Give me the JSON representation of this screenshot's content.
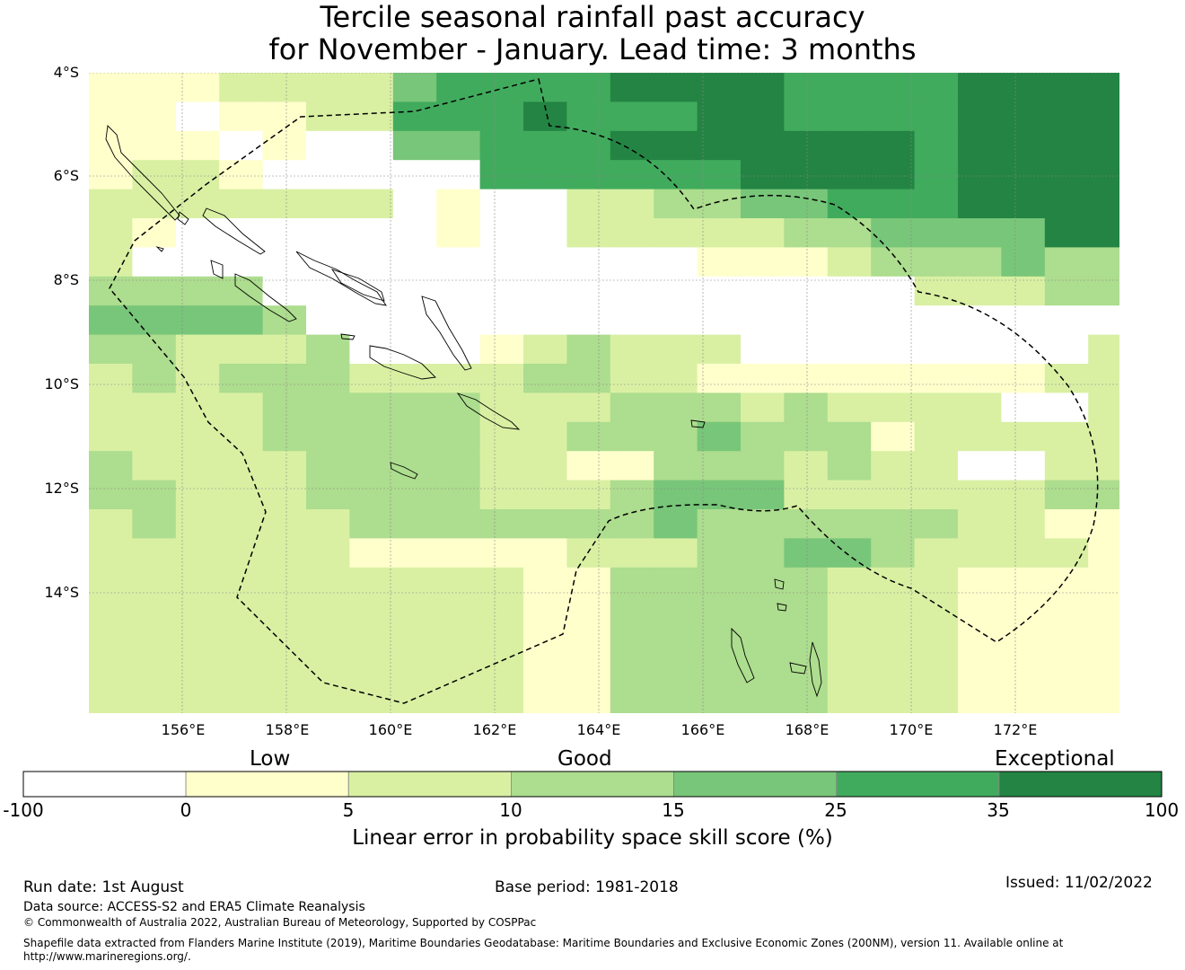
{
  "title": {
    "line1": "Tercile seasonal rainfall past accuracy",
    "line2": "for November - January. Lead time: 3 months"
  },
  "map": {
    "lat_labels": [
      "4°S",
      "6°S",
      "8°S",
      "10°S",
      "12°S",
      "14°S"
    ],
    "lon_labels": [
      "156°E",
      "158°E",
      "160°E",
      "162°E",
      "164°E",
      "166°E",
      "168°E",
      "170°E",
      "172°E"
    ],
    "extent": {
      "lon_min": 154.2,
      "lon_max": 174.0,
      "lat_min": -16.2,
      "lat_max": -4.0
    },
    "cell_size_deg": 0.833,
    "boundary_line": "dashed",
    "color_classes": [
      "#ffffff",
      "#ffffcc",
      "#d9f0a3",
      "#addd8e",
      "#78c679",
      "#41ab5d",
      "#238443"
    ]
  },
  "colorbar": {
    "categories": [
      "Low",
      "Good",
      "Exceptional"
    ],
    "ticks": [
      "-100",
      "0",
      "5",
      "10",
      "15",
      "25",
      "35",
      "100"
    ],
    "colors": [
      "#ffffff",
      "#ffffcc",
      "#d9f0a3",
      "#addd8e",
      "#78c679",
      "#41ab5d",
      "#238443"
    ],
    "label": "Linear error in probability space skill score (%)"
  },
  "footer": {
    "run_date": "Run date: 1st August",
    "base_period": "Base period: 1981-2018",
    "issued": "Issued: 11/02/2022",
    "data_source": "Data source: ACCESS-S2 and ERA5 Climate Reanalysis",
    "copyright": "© Commonwealth of Australia 2022, Australian Bureau of Meteorology, Supported by COSPPac",
    "shapefile_line1": "Shapefile data extracted from Flanders Marine Institute (2019), Maritime Boundaries Geodatabase: Maritime Boundaries and Exclusive Economic Zones (200NM), version 11. Available online at",
    "shapefile_line2": "http://www.marineregions.org/."
  }
}
